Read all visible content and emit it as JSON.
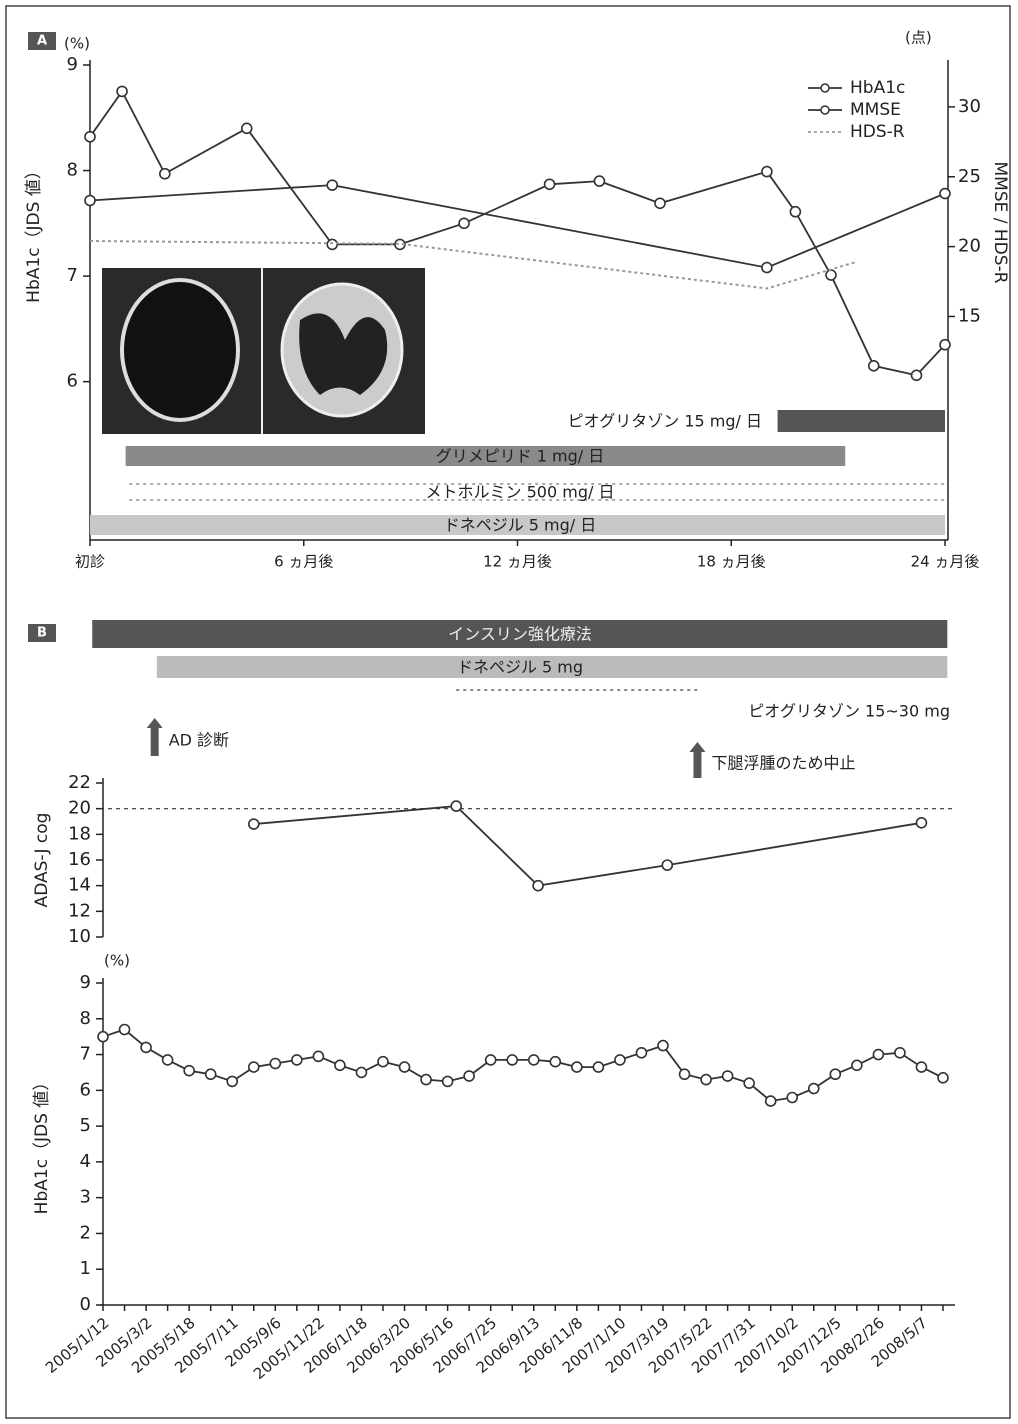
{
  "chart_data": [
    {
      "type": "line",
      "panel": "A",
      "y_unit": "(%)",
      "y2_unit": "(点)",
      "y_label": "HbA1c（JDS 値）",
      "y2_label": "MMSE / HDS-R",
      "xlim": [
        0,
        24
      ],
      "xticks": [
        {
          "value": 0,
          "label": "初診"
        },
        {
          "value": 6,
          "label": "6 ヵ月後"
        },
        {
          "value": 12,
          "label": "12 ヵ月後"
        },
        {
          "value": 18,
          "label": "18 ヵ月後"
        },
        {
          "value": 24,
          "label": "24 ヵ月後"
        }
      ],
      "ylim": [
        4.5,
        9
      ],
      "yticks": [
        6,
        7,
        8,
        9
      ],
      "y2lim": [
        -1,
        33
      ],
      "y2ticks": [
        15,
        20,
        25,
        30
      ],
      "series": [
        {
          "name": "HbA1c",
          "color": "#333333",
          "x": [
            0,
            0.9,
            2.1,
            4.4,
            6.8,
            8.7,
            10.5,
            12.9,
            14.3,
            16.0,
            19.0,
            19.8,
            20.8,
            22.0,
            23.2,
            24.0
          ],
          "values": [
            8.32,
            8.75,
            7.97,
            8.4,
            7.3,
            7.3,
            7.5,
            7.87,
            7.9,
            7.69,
            7.99,
            7.61,
            7.01,
            6.15,
            6.06,
            6.35
          ]
        },
        {
          "name": "MMSE",
          "color": "#333333",
          "axis": "y2",
          "x": [
            0,
            6.8,
            19.0,
            24.0
          ],
          "values": [
            23.3,
            24.4,
            18.5,
            23.8
          ]
        },
        {
          "name": "HDS-R",
          "color": "#999999",
          "axis": "y2",
          "dashed": true,
          "x": [
            0,
            8.7,
            19.0,
            21.5
          ],
          "values": [
            20.4,
            20.2,
            17.0,
            18.9
          ]
        }
      ],
      "bars": [
        {
          "label": "ピオグリタゾン 15 mg/ 日",
          "start": 19.3,
          "end": 24,
          "color": "#555555"
        },
        {
          "label": "グリメピリド 1 mg/ 日",
          "start": 1.0,
          "end": 21.2,
          "color": "#8a8a8a"
        },
        {
          "label": "メトホルミン 500 mg/ 日",
          "start": 1.1,
          "end": 24,
          "color": "#aaaaaa"
        },
        {
          "label": "ドネペジル 5 mg/ 日",
          "start": 0,
          "end": 24,
          "color": "#c8c8c8"
        }
      ]
    },
    {
      "type": "line",
      "panel": "B",
      "y_label": "ADAS-J cog",
      "xlim": [
        0,
        39
      ],
      "ylim": [
        10,
        22
      ],
      "yticks": [
        10,
        12,
        14,
        16,
        18,
        20,
        22
      ],
      "reference": 20,
      "series": [
        {
          "color": "#333333",
          "x": [
            7,
            16.4,
            20.2,
            26.2,
            38
          ],
          "values": [
            18.8,
            20.2,
            14.0,
            15.6,
            18.9
          ]
        }
      ],
      "bars": [
        {
          "label": "インスリン強化療法",
          "start": -0.5,
          "end": 39.2,
          "color": "#555555"
        },
        {
          "label": "ドネペジル 5 mg",
          "start": 2.5,
          "end": 39.2,
          "color": "#bbbbbb"
        },
        {
          "label": "ピオグリタゾン 15~30 mg",
          "start": 16.4,
          "end": 27.6,
          "color": "#888888"
        }
      ],
      "annotations": [
        {
          "text": "AD 診断",
          "x": 2.4
        },
        {
          "text": "下腿浮腫のため中止",
          "x": 27.6
        }
      ]
    },
    {
      "type": "line",
      "y_unit": "(%)",
      "y_label": "HbA1c（JDS 値）",
      "ylim": [
        0,
        9
      ],
      "yticks": [
        0,
        1,
        2,
        3,
        4,
        5,
        6,
        7,
        8,
        9
      ],
      "categories": [
        "2005/1/12",
        null,
        "2005/3/2",
        null,
        "2005/5/18",
        null,
        "2005/7/11",
        null,
        "2005/9/6",
        null,
        "2005/11/22",
        null,
        "2006/1/18",
        null,
        "2006/3/20",
        null,
        "2006/5/16",
        null,
        "2006/7/25",
        null,
        "2006/9/13",
        null,
        "2006/11/8",
        null,
        "2007/1/10",
        null,
        "2007/3/19",
        null,
        "2007/5/22",
        null,
        "2007/7/31",
        null,
        "2007/10/2",
        null,
        "2007/12/5",
        null,
        "2008/2/26",
        null,
        "2008/5/7",
        null
      ],
      "series": [
        {
          "color": "#333333",
          "values": [
            7.5,
            7.7,
            7.2,
            6.85,
            6.55,
            6.45,
            6.25,
            6.65,
            6.75,
            6.85,
            6.95,
            6.7,
            6.5,
            6.8,
            6.65,
            6.3,
            6.25,
            6.4,
            6.85,
            6.85,
            6.85,
            6.8,
            6.65,
            6.65,
            6.85,
            7.05,
            7.25,
            6.45,
            6.3,
            6.4,
            6.2,
            5.7,
            5.8,
            6.05,
            6.45,
            6.7,
            7.0,
            7.05,
            6.65,
            6.35
          ]
        }
      ]
    }
  ]
}
